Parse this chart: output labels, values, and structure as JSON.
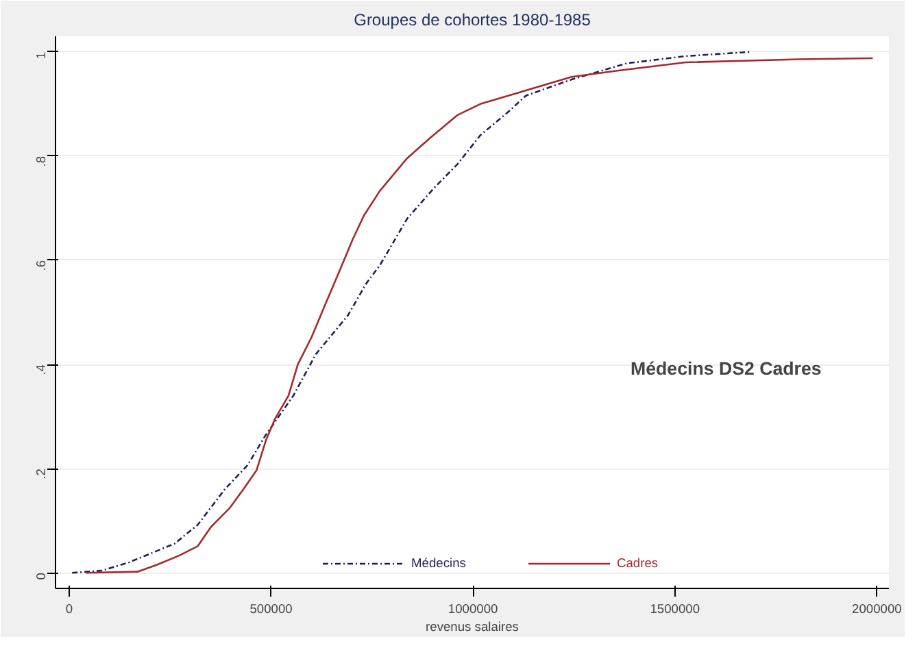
{
  "chart_data": {
    "type": "line",
    "title": "Groupes de cohortes 1980-1985",
    "xlabel": "revenus salaires",
    "annotations": [
      "Médecins DS2 Cadres"
    ],
    "xlim": [
      -34000,
      2030000
    ],
    "ylim": [
      -0.03,
      1.03
    ],
    "xticks": [
      0,
      500000,
      1000000,
      1500000,
      2000000
    ],
    "yticks": [
      0,
      {
        "value": 0.2,
        "label": ".2"
      },
      {
        "value": 0.4,
        "label": ".4"
      },
      {
        "value": 0.6,
        "label": ".6"
      },
      {
        "value": 0.8,
        "label": ".8"
      },
      1
    ],
    "grid": "y",
    "legend": "bottom",
    "series": [
      {
        "name": "Médecins",
        "color": "#1f1f5f",
        "line_style": "dashed",
        "x": [
          7000,
          80000,
          148000,
          261000,
          318000,
          385000,
          442000,
          487000,
          555000,
          611000,
          690000,
          736000,
          769000,
          837000,
          905000,
          962000,
          1018000,
          1086000,
          1131000,
          1244000,
          1380000,
          1527000,
          1685000
        ],
        "values": [
          0,
          0.004,
          0.02,
          0.056,
          0.092,
          0.16,
          0.207,
          0.265,
          0.34,
          0.42,
          0.494,
          0.556,
          0.59,
          0.68,
          0.74,
          0.785,
          0.84,
          0.884,
          0.916,
          0.947,
          0.978,
          0.992,
          1.0
        ]
      },
      {
        "name": "Cadres",
        "color": "#a52a2a",
        "line_style": "solid",
        "x": [
          41000,
          169000,
          216000,
          272000,
          318000,
          351000,
          397000,
          431000,
          464000,
          487000,
          510000,
          543000,
          566000,
          600000,
          634000,
          668000,
          702000,
          730000,
          769000,
          837000,
          894000,
          962000,
          1018000,
          1131000,
          1244000,
          1357000,
          1527000,
          1809000,
          1990000
        ],
        "values": [
          0,
          0.002,
          0.015,
          0.033,
          0.051,
          0.088,
          0.124,
          0.16,
          0.197,
          0.254,
          0.296,
          0.34,
          0.4,
          0.452,
          0.515,
          0.577,
          0.64,
          0.686,
          0.733,
          0.796,
          0.835,
          0.879,
          0.9,
          0.926,
          0.952,
          0.964,
          0.98,
          0.986,
          0.988
        ]
      }
    ]
  }
}
